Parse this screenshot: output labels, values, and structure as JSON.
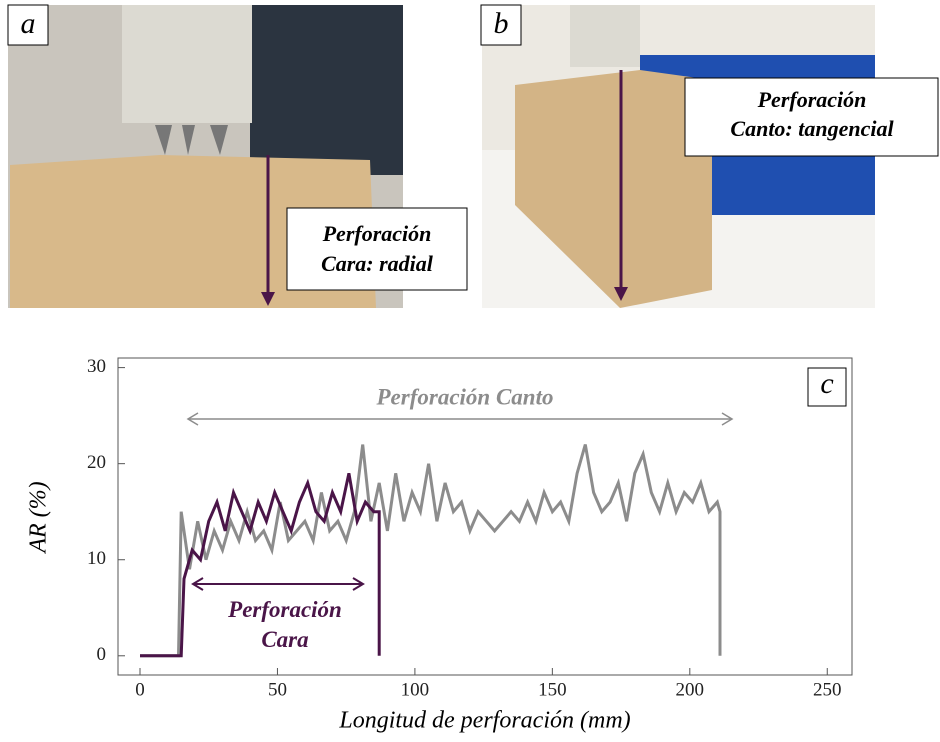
{
  "photos": [
    {
      "label": "a",
      "caption": [
        "Perforación",
        "Cara: radial"
      ]
    },
    {
      "label": "b",
      "caption": [
        "Perforación",
        "Canto: tangencial"
      ]
    }
  ],
  "chart_data": {
    "type": "line",
    "panel_label": "c",
    "x_label": "Longitud de perforación (mm)",
    "y_label": "AR (%)",
    "xlim": [
      -8,
      259
    ],
    "ylim": [
      -2,
      31
    ],
    "xticks": [
      0,
      50,
      100,
      150,
      200,
      250
    ],
    "yticks": [
      0,
      10,
      20,
      30
    ],
    "series": [
      {
        "name": "Perforación Canto",
        "color": "#8c8c8c",
        "x": [
          0,
          14,
          15,
          18,
          21,
          24,
          27,
          30,
          33,
          36,
          39,
          42,
          45,
          48,
          51,
          54,
          57,
          60,
          63,
          66,
          69,
          72,
          75,
          78,
          81,
          84,
          87,
          90,
          93,
          96,
          99,
          102,
          105,
          108,
          111,
          114,
          117,
          120,
          123,
          126,
          129,
          132,
          135,
          138,
          141,
          144,
          147,
          150,
          153,
          156,
          159,
          162,
          165,
          168,
          171,
          174,
          177,
          180,
          183,
          186,
          189,
          192,
          195,
          198,
          201,
          204,
          207,
          210,
          211,
          211
        ],
        "values": [
          0,
          0,
          15,
          9,
          14,
          10,
          13,
          11,
          14,
          12,
          15,
          12,
          13,
          11,
          16,
          12,
          13,
          14,
          12,
          17,
          13,
          14,
          12,
          15,
          22,
          14,
          18,
          13,
          19,
          14,
          17,
          15,
          20,
          14,
          18,
          15,
          16,
          13,
          15,
          14,
          13,
          14,
          15,
          14,
          16,
          14,
          17,
          15,
          16,
          14,
          19,
          22,
          17,
          15,
          16,
          18,
          14,
          19,
          21,
          17,
          15,
          18,
          15,
          17,
          16,
          18,
          15,
          16,
          15,
          0
        ]
      },
      {
        "name": "Perforación Cara",
        "color": "#4a1548",
        "x": [
          0,
          15,
          16,
          19,
          22,
          25,
          28,
          31,
          34,
          37,
          40,
          43,
          46,
          49,
          52,
          55,
          58,
          61,
          64,
          67,
          70,
          73,
          76,
          79,
          82,
          85,
          87,
          87
        ],
        "values": [
          0,
          0,
          8,
          11,
          10,
          14,
          16,
          13,
          17,
          15,
          13,
          16,
          14,
          17,
          15,
          13,
          16,
          18,
          15,
          14,
          17,
          15,
          19,
          14,
          16,
          15,
          15,
          0
        ]
      }
    ]
  }
}
